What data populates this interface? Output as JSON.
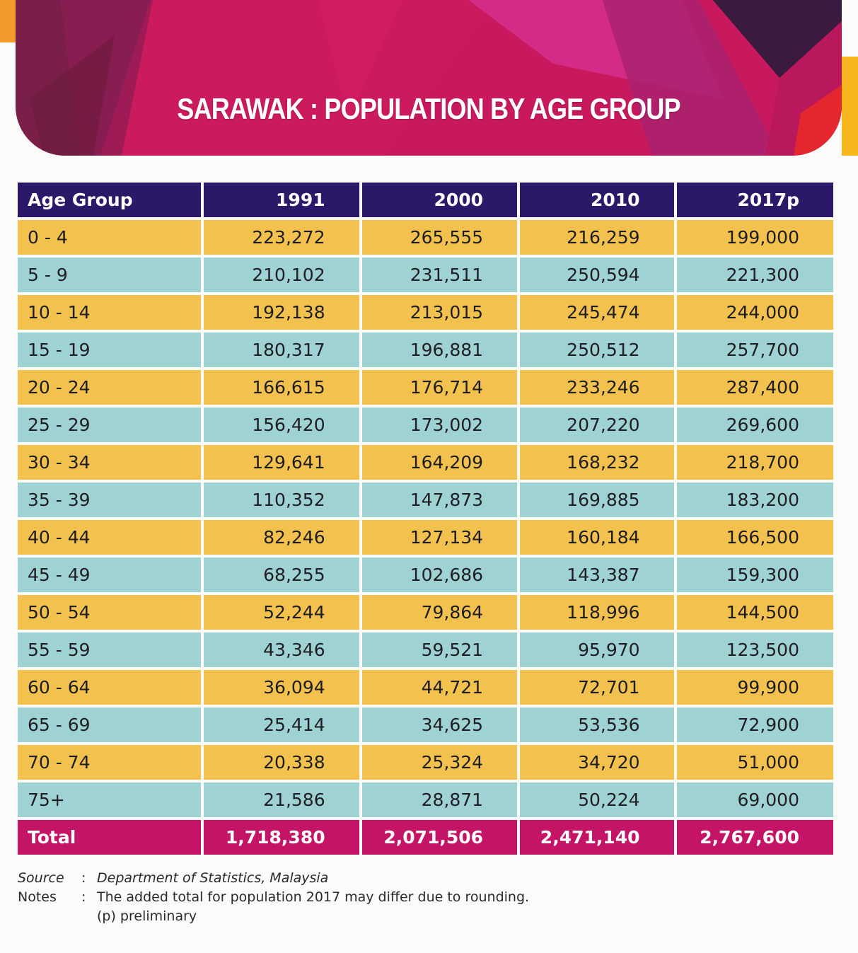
{
  "title": "SARAWAK : POPULATION BY AGE GROUP",
  "colors": {
    "header_bg": "#2c1868",
    "row_yellow": "#f2c14e",
    "row_teal": "#9fd2d2",
    "total_bg": "#c31466",
    "banner": "#c8195e"
  },
  "table": {
    "headers": [
      "Age Group",
      "1991",
      "2000",
      "2010",
      "2017p"
    ],
    "rows": [
      [
        "0 - 4",
        "223,272",
        "265,555",
        "216,259",
        "199,000"
      ],
      [
        "5 - 9",
        "210,102",
        "231,511",
        "250,594",
        "221,300"
      ],
      [
        "10 - 14",
        "192,138",
        "213,015",
        "245,474",
        "244,000"
      ],
      [
        "15 - 19",
        "180,317",
        "196,881",
        "250,512",
        "257,700"
      ],
      [
        "20 - 24",
        "166,615",
        "176,714",
        "233,246",
        "287,400"
      ],
      [
        "25 - 29",
        "156,420",
        "173,002",
        "207,220",
        "269,600"
      ],
      [
        "30 - 34",
        "129,641",
        "164,209",
        "168,232",
        "218,700"
      ],
      [
        "35 - 39",
        "110,352",
        "147,873",
        "169,885",
        "183,200"
      ],
      [
        "40 - 44",
        "82,246",
        "127,134",
        "160,184",
        "166,500"
      ],
      [
        "45 - 49",
        "68,255",
        "102,686",
        "143,387",
        "159,300"
      ],
      [
        "50 - 54",
        "52,244",
        "79,864",
        "118,996",
        "144,500"
      ],
      [
        "55 - 59",
        "43,346",
        "59,521",
        "95,970",
        "123,500"
      ],
      [
        "60 - 64",
        "36,094",
        "44,721",
        "72,701",
        "99,900"
      ],
      [
        "65 - 69",
        "25,414",
        "34,625",
        "53,536",
        "72,900"
      ],
      [
        "70 - 74",
        "20,338",
        "25,324",
        "34,720",
        "51,000"
      ],
      [
        "75+",
        "21,586",
        "28,871",
        "50,224",
        "69,000"
      ]
    ],
    "total": [
      "Total",
      "1,718,380",
      "2,071,506",
      "2,471,140",
      "2,767,600"
    ]
  },
  "footer": {
    "source_label": "Source",
    "separator": ":",
    "source_text": "Department of Statistics, Malaysia",
    "notes_label": "Notes",
    "notes_text": "The added total for population 2017 may differ due to rounding.",
    "notes_text_2": "(p)  preliminary"
  }
}
